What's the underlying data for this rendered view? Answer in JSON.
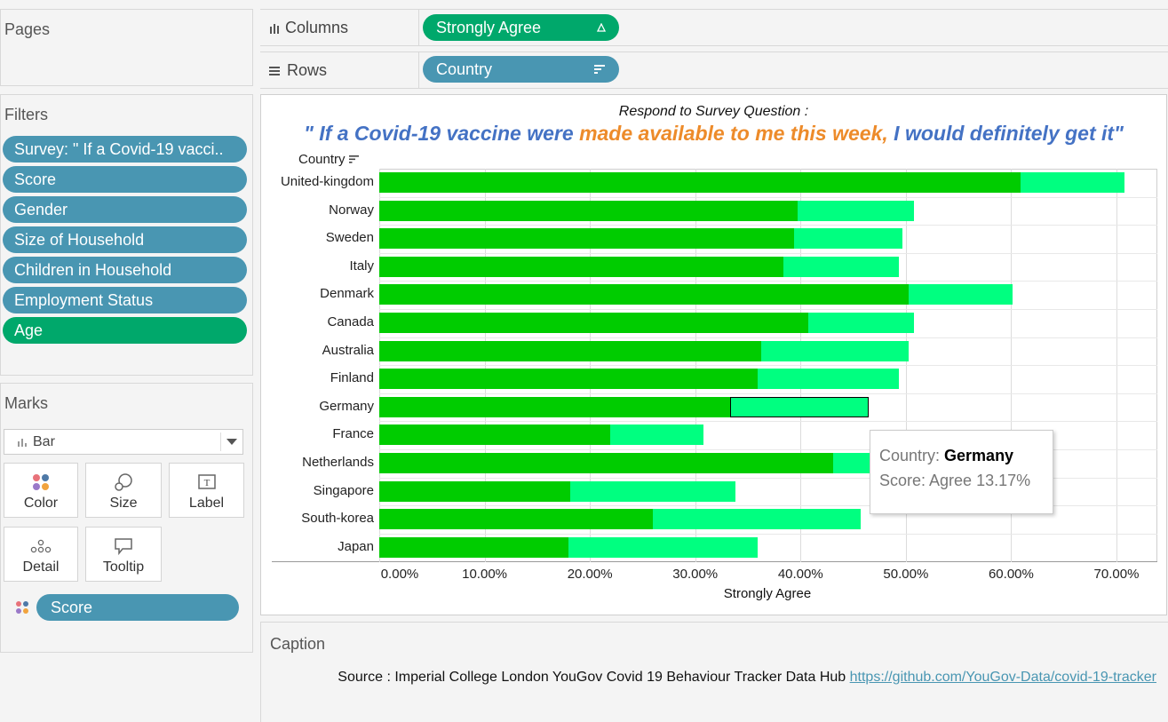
{
  "pages": {
    "title": "Pages"
  },
  "filters": {
    "title": "Filters",
    "items": [
      "Survey: \" If a Covid-19 vacci..",
      "Score",
      "Gender",
      "Size of Household",
      "Children in Household",
      "Employment Status",
      "Age"
    ]
  },
  "marks": {
    "title": "Marks",
    "type": "Bar",
    "cards": [
      "Color",
      "Size",
      "Label",
      "Detail",
      "Tooltip"
    ],
    "score_pill": "Score"
  },
  "shelves": {
    "columns_label": "Columns",
    "columns_pill": "Strongly Agree",
    "rows_label": "Rows",
    "rows_pill": "Country"
  },
  "viz": {
    "title_line1": "Respond to Survey Question :",
    "title_part1": "\" If a Covid-19 vaccine were ",
    "title_part2": "made available to me this week,",
    "title_part3": " I would definitely get it\"",
    "row_header": "Country"
  },
  "chart_data": {
    "type": "bar",
    "orientation": "horizontal",
    "stacked": true,
    "xlabel": "Strongly Agree",
    "ylabel": "Country",
    "xlim": [
      0,
      0.74
    ],
    "tick_labels": [
      "0.00%",
      "10.00%",
      "20.00%",
      "30.00%",
      "40.00%",
      "50.00%",
      "60.00%",
      "70.00%"
    ],
    "categories": [
      "United-kingdom",
      "Norway",
      "Sweden",
      "Italy",
      "Denmark",
      "Canada",
      "Australia",
      "Finland",
      "Germany",
      "France",
      "Netherlands",
      "Singapore",
      "South-korea",
      "Japan"
    ],
    "series": [
      {
        "name": "Strongly Agree",
        "color": "#00cc00",
        "values": [
          0.609,
          0.397,
          0.394,
          0.384,
          0.503,
          0.407,
          0.363,
          0.359,
          0.333,
          0.219,
          0.431,
          0.181,
          0.26,
          0.18
        ]
      },
      {
        "name": "Agree",
        "color": "#00ff80",
        "values": [
          0.099,
          0.111,
          0.103,
          0.109,
          0.098,
          0.101,
          0.14,
          0.134,
          0.1317,
          0.089,
          0.045,
          0.157,
          0.197,
          0.179
        ]
      }
    ]
  },
  "tooltip": {
    "country_label": "Country: ",
    "country_value": "Germany",
    "score_label": "Score: Agree 13.17%"
  },
  "caption": {
    "title": "Caption",
    "source_text": "Source : Imperial College London YouGov Covid 19 Behaviour Tracker Data Hub ",
    "link": "https://github.com/YouGov-Data/covid-19-tracker"
  }
}
